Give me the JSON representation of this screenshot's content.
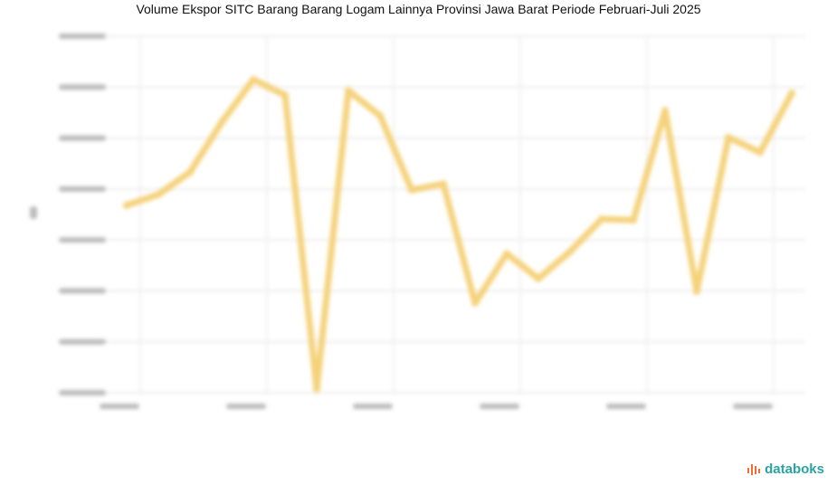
{
  "chart_data": {
    "type": "line",
    "title": "Volume Ekspor SITC Barang Barang Logam Lainnya Provinsi Jawa Barat Periode Februari-Juli 2025",
    "xlabel": "",
    "ylabel": "",
    "ylim": [
      0,
      7
    ],
    "grid": true,
    "series": [
      {
        "color": "#f5d27a",
        "values": [
          3.68,
          3.89,
          4.33,
          5.31,
          6.15,
          5.84,
          0.07,
          5.93,
          5.44,
          3.98,
          4.1,
          1.76,
          2.73,
          2.24,
          2.77,
          3.41,
          3.39,
          5.54,
          1.99,
          5.01,
          4.72,
          5.88
        ]
      }
    ]
  },
  "logo": {
    "text": "databoks",
    "color": "#2aa3a3",
    "accent": "#f26b3a"
  }
}
